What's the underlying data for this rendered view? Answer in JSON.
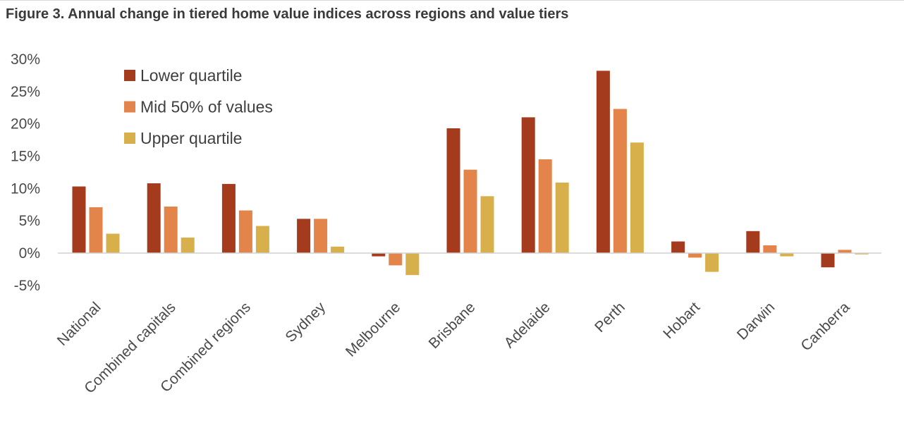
{
  "title": "Figure 3. Annual change in tiered home value indices across regions and value tiers",
  "chart_data": {
    "type": "bar",
    "title": "Figure 3. Annual change in tiered home value indices across regions and value tiers",
    "xlabel": "",
    "ylabel": "",
    "categories": [
      "National",
      "Combined capitals",
      "Combined regions",
      "Sydney",
      "Melbourne",
      "Brisbane",
      "Adelaide",
      "Perth",
      "Hobart",
      "Darwin",
      "Canberra"
    ],
    "series": [
      {
        "name": "Lower quartile",
        "color": "#A33B1C",
        "values": [
          10.3,
          10.8,
          10.7,
          5.3,
          -0.5,
          19.3,
          21.0,
          28.2,
          1.8,
          3.4,
          -2.2
        ]
      },
      {
        "name": "Mid 50% of values",
        "color": "#E3844A",
        "values": [
          7.1,
          7.2,
          6.6,
          5.3,
          -1.9,
          12.9,
          14.5,
          22.3,
          -0.7,
          1.2,
          0.5
        ]
      },
      {
        "name": "Upper quartile",
        "color": "#D8B04B",
        "values": [
          3.0,
          2.4,
          4.2,
          1.0,
          -3.4,
          8.8,
          10.9,
          17.1,
          -2.9,
          -0.5,
          -0.2
        ]
      }
    ],
    "yticks": [
      "30%",
      "25%",
      "20%",
      "15%",
      "10%",
      "5%",
      "0%",
      "-5%"
    ],
    "ylim": [
      -5,
      30
    ],
    "grid": false,
    "legend": "top-left"
  }
}
